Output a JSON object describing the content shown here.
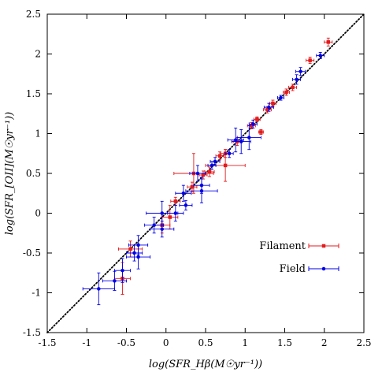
{
  "chart_data": {
    "type": "scatter",
    "xlabel": "log(SFR_Hβ(M☉yr⁻¹))",
    "ylabel": "log(SFR_[OII](M☉yr⁻¹))",
    "xlim": [
      -1.5,
      2.5
    ],
    "ylim": [
      -1.5,
      2.5
    ],
    "xticks": [
      "-1.5",
      "-1",
      "-0.5",
      "0",
      "0.5",
      "1",
      "1.5",
      "2",
      "2.5"
    ],
    "yticks": [
      "-1.5",
      "-1",
      "-0.5",
      "0",
      "0.5",
      "1",
      "1.5",
      "2",
      "2.5"
    ],
    "grid": false,
    "legend_position": "bottom-right",
    "reference_line": {
      "style": "dotted",
      "slope": 1,
      "intercept": 0
    },
    "series": [
      {
        "name": "Filament",
        "color": "#e41a1c",
        "marker": "square",
        "points": [
          {
            "x": 2.05,
            "y": 2.15,
            "xe": 0.05,
            "ye": 0.05
          },
          {
            "x": 1.82,
            "y": 1.92,
            "xe": 0.05,
            "ye": 0.04
          },
          {
            "x": 1.6,
            "y": 1.58,
            "xe": 0.05,
            "ye": 0.04
          },
          {
            "x": 1.52,
            "y": 1.52,
            "xe": 0.04,
            "ye": 0.04
          },
          {
            "x": 1.35,
            "y": 1.38,
            "xe": 0.04,
            "ye": 0.04
          },
          {
            "x": 1.28,
            "y": 1.3,
            "xe": 0.05,
            "ye": 0.04
          },
          {
            "x": 1.15,
            "y": 1.18,
            "xe": 0.04,
            "ye": 0.03
          },
          {
            "x": 1.08,
            "y": 1.1,
            "xe": 0.05,
            "ye": 0.04
          },
          {
            "x": 1.2,
            "y": 1.02,
            "xe": 0.03,
            "ye": 0.03
          },
          {
            "x": 0.9,
            "y": 0.9,
            "xe": 0.05,
            "ye": 0.05
          },
          {
            "x": 0.75,
            "y": 0.75,
            "xe": 0.06,
            "ye": 0.05
          },
          {
            "x": 0.68,
            "y": 0.72,
            "xe": 0.05,
            "ye": 0.05
          },
          {
            "x": 0.55,
            "y": 0.52,
            "xe": 0.06,
            "ye": 0.06
          },
          {
            "x": 0.47,
            "y": 0.48,
            "xe": 0.05,
            "ye": 0.05
          },
          {
            "x": 0.75,
            "y": 0.6,
            "xe": 0.25,
            "ye": 0.2
          },
          {
            "x": 0.35,
            "y": 0.5,
            "xe": 0.25,
            "ye": 0.25
          },
          {
            "x": 0.33,
            "y": 0.33,
            "xe": 0.06,
            "ye": 0.06
          },
          {
            "x": 0.12,
            "y": 0.15,
            "xe": 0.06,
            "ye": 0.05
          },
          {
            "x": 0.05,
            "y": -0.05,
            "xe": 0.1,
            "ye": 0.15
          },
          {
            "x": -0.05,
            "y": -0.15,
            "xe": 0.1,
            "ye": 0.1
          },
          {
            "x": -0.45,
            "y": -0.45,
            "xe": 0.15,
            "ye": 0.1
          },
          {
            "x": -0.55,
            "y": -0.82,
            "xe": 0.1,
            "ye": 0.2
          }
        ]
      },
      {
        "name": "Field",
        "color": "#0000e6",
        "marker": "circle",
        "points": [
          {
            "x": 1.95,
            "y": 1.98,
            "xe": 0.05,
            "ye": 0.04
          },
          {
            "x": 1.7,
            "y": 1.78,
            "xe": 0.06,
            "ye": 0.05
          },
          {
            "x": 1.65,
            "y": 1.68,
            "xe": 0.05,
            "ye": 0.06
          },
          {
            "x": 1.45,
            "y": 1.45,
            "xe": 0.04,
            "ye": 0.03
          },
          {
            "x": 1.3,
            "y": 1.33,
            "xe": 0.06,
            "ye": 0.05
          },
          {
            "x": 1.1,
            "y": 1.12,
            "xe": 0.05,
            "ye": 0.05
          },
          {
            "x": 1.05,
            "y": 0.95,
            "xe": 0.15,
            "ye": 0.15
          },
          {
            "x": 0.95,
            "y": 0.9,
            "xe": 0.12,
            "ye": 0.15
          },
          {
            "x": 0.88,
            "y": 0.92,
            "xe": 0.1,
            "ye": 0.15
          },
          {
            "x": 0.8,
            "y": 0.75,
            "xe": 0.05,
            "ye": 0.05
          },
          {
            "x": 0.62,
            "y": 0.65,
            "xe": 0.06,
            "ye": 0.05
          },
          {
            "x": 0.58,
            "y": 0.6,
            "xe": 0.05,
            "ye": 0.05
          },
          {
            "x": 0.45,
            "y": 0.35,
            "xe": 0.1,
            "ye": 0.1
          },
          {
            "x": 0.4,
            "y": 0.5,
            "xe": 0.1,
            "ye": 0.1
          },
          {
            "x": 0.45,
            "y": 0.28,
            "xe": 0.2,
            "ye": 0.15
          },
          {
            "x": 0.22,
            "y": 0.25,
            "xe": 0.1,
            "ye": 0.1
          },
          {
            "x": 0.25,
            "y": 0.1,
            "xe": 0.08,
            "ye": 0.06
          },
          {
            "x": 0.12,
            "y": 0.0,
            "xe": 0.1,
            "ye": 0.1
          },
          {
            "x": -0.05,
            "y": 0.0,
            "xe": 0.2,
            "ye": 0.15
          },
          {
            "x": -0.15,
            "y": -0.15,
            "xe": 0.12,
            "ye": 0.1
          },
          {
            "x": -0.05,
            "y": -0.2,
            "xe": 0.15,
            "ye": 0.1
          },
          {
            "x": -0.35,
            "y": -0.4,
            "xe": 0.12,
            "ye": 0.12
          },
          {
            "x": -0.4,
            "y": -0.5,
            "xe": 0.1,
            "ye": 0.1
          },
          {
            "x": -0.35,
            "y": -0.55,
            "xe": 0.15,
            "ye": 0.15
          },
          {
            "x": -0.55,
            "y": -0.72,
            "xe": 0.1,
            "ye": 0.15
          },
          {
            "x": -0.65,
            "y": -0.85,
            "xe": 0.15,
            "ye": 0.12
          },
          {
            "x": -0.85,
            "y": -0.95,
            "xe": 0.2,
            "ye": 0.2
          }
        ]
      }
    ]
  }
}
